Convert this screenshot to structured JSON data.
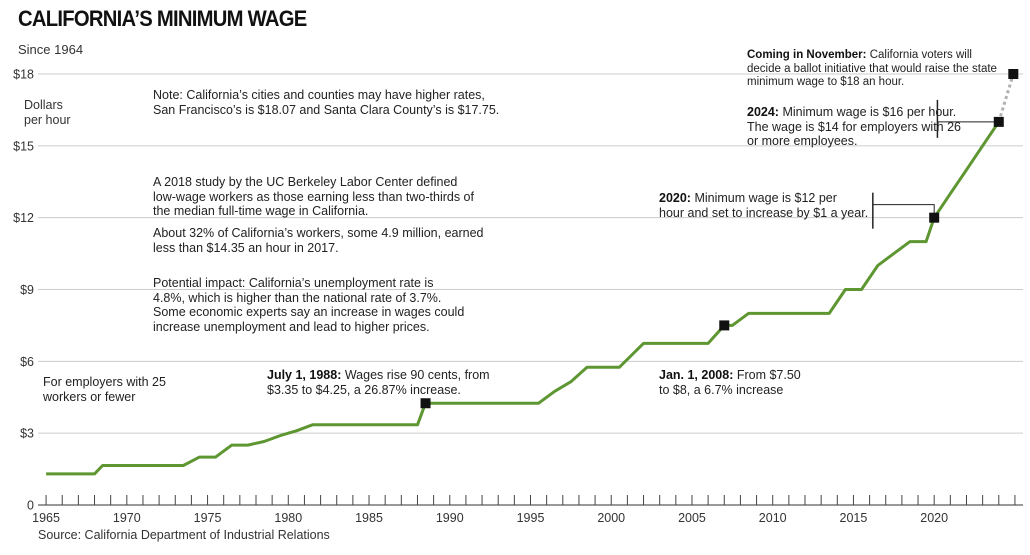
{
  "header": {
    "title": "CALIFORNIA’S MINIMUM WAGE",
    "subtitle": "Since 1964"
  },
  "source": "Source: California Department of Industrial Relations",
  "colors": {
    "line": "#5e9632",
    "marker": "#111111",
    "grid": "#cccccc",
    "projection": "#b0b0b0"
  },
  "annotations": {
    "note": [
      "Note: California’s cities and counties may have higher rates,",
      "San Francisco’s is $18.07 and Santa Clara County’s is $17.75."
    ],
    "study": [
      "A 2018 study by the UC Berkeley Labor Center defined",
      "low-wage workers as those earning less than two-thirds of",
      "the median full-time wage in California."
    ],
    "share": [
      "About 32% of California’s workers, some 4.9 million, earned",
      "less than $14.35 an hour in 2017."
    ],
    "impact": [
      "Potential impact: California’s unemployment rate is",
      "4.8%, which is higher than the national rate of 3.7%.",
      "Some economic experts say an increase in wages could",
      "increase unemployment and lead to higher prices."
    ],
    "small_employers": [
      "For employers with 25",
      "workers or fewer"
    ],
    "y_1988": {
      "bold": "July 1, 1988:",
      "rest": [
        "Wages rise 90 cents, from",
        "$3.35 to $4.25, a 26.87% increase."
      ]
    },
    "y_2008": {
      "bold": "Jan. 1, 2008:",
      "rest": [
        "From $7.50",
        "to $8, a 6.7% increase"
      ]
    },
    "y_2020": {
      "bold": "2020:",
      "rest": [
        "Minimum wage is $12 per",
        "hour and set to increase by $1 a year."
      ]
    },
    "y_2024": {
      "bold": "2024:",
      "rest": [
        "Minimum wage is $16 per hour.",
        "The wage is $14 for employers with 26",
        "or more employees."
      ]
    },
    "november": {
      "bold": "Coming in November:",
      "rest": [
        "California voters will",
        "decide a ballot initiative that would raise the state",
        "minimum wage to $18 an hour."
      ]
    }
  },
  "chart_data": {
    "type": "line",
    "title": "CALIFORNIA’S MINIMUM WAGE",
    "subtitle": "Since 1964",
    "ylabel": "Dollars per hour",
    "xlabel": "",
    "xlim": [
      1964.5,
      2025.5
    ],
    "ylim": [
      0,
      18
    ],
    "grid": true,
    "y_ticks": [
      0,
      3,
      6,
      9,
      12,
      15,
      18
    ],
    "y_tick_labels": [
      "0",
      "$3",
      "$6",
      "$9",
      "$12",
      "$15",
      "$18"
    ],
    "x_ticks": [
      1965,
      1970,
      1975,
      1980,
      1985,
      1990,
      1995,
      2000,
      2005,
      2010,
      2015,
      2020
    ],
    "x_tick_labels": [
      "1965",
      "1970",
      "1975",
      "1980",
      "1985",
      "1990",
      "1995",
      "2000",
      "2005",
      "2010",
      "2015",
      "2020"
    ],
    "series": [
      {
        "x": [
          1965,
          1968,
          1968.5,
          1973.5,
          1974.5,
          1975.5,
          1976.5,
          1977.5,
          1978.5,
          1979.5,
          1980.5,
          1981.5,
          1982,
          1988,
          1988.5,
          1995.5,
          1996.5,
          1997.5,
          1998.5,
          2000.5,
          2002,
          2006,
          2007,
          2007.5,
          2008.5,
          2013.5,
          2014.5,
          2015.5,
          2016.5,
          2017.5,
          2018.5,
          2019.5,
          2020,
          2021,
          2022,
          2023,
          2024
        ],
        "y": [
          1.3,
          1.3,
          1.65,
          1.65,
          2.0,
          2.0,
          2.5,
          2.5,
          2.65,
          2.9,
          3.1,
          3.35,
          3.35,
          3.35,
          4.25,
          4.25,
          4.75,
          5.15,
          5.75,
          5.75,
          6.75,
          6.75,
          7.5,
          7.5,
          8.0,
          8.0,
          9.0,
          9.0,
          10.0,
          10.5,
          11.0,
          11.0,
          12.0,
          13.0,
          14.0,
          15.0,
          16.0
        ]
      }
    ],
    "projection": {
      "x": [
        2024,
        2024.9
      ],
      "y": [
        16,
        18
      ]
    },
    "markers": [
      {
        "x": 1988.5,
        "y": 4.25
      },
      {
        "x": 2007,
        "y": 7.5
      },
      {
        "x": 2020,
        "y": 12
      },
      {
        "x": 2024,
        "y": 16
      },
      {
        "x": 2024.9,
        "y": 18
      }
    ]
  }
}
